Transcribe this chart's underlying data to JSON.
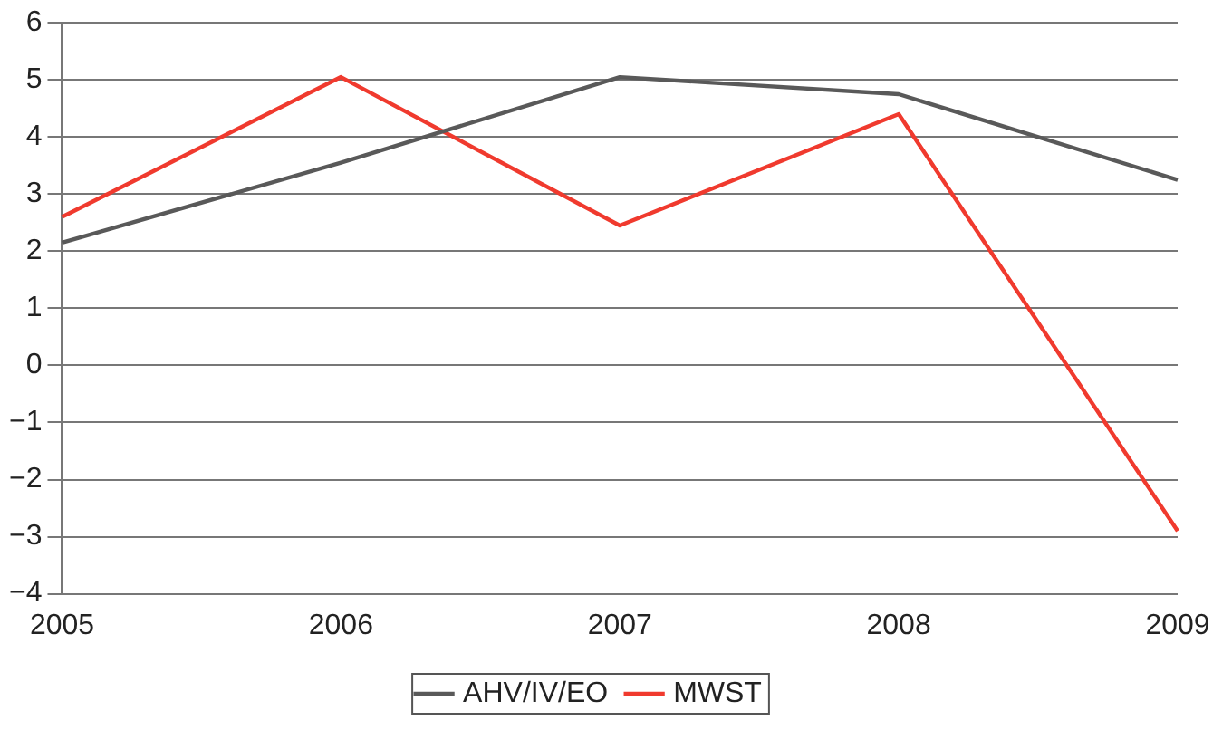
{
  "chart_data": {
    "type": "line",
    "categories": [
      "2005",
      "2006",
      "2007",
      "2008",
      "2009"
    ],
    "series": [
      {
        "name": "AHV/IV/EO",
        "color": "#595959",
        "values": [
          2.15,
          3.55,
          5.05,
          4.75,
          3.25
        ]
      },
      {
        "name": "MWST",
        "color": "#f03a2e",
        "values": [
          2.6,
          5.05,
          2.45,
          4.4,
          -2.9
        ]
      }
    ],
    "ylim": [
      -4,
      6
    ],
    "yticks": [
      {
        "value": -4,
        "label": "−4"
      },
      {
        "value": -3,
        "label": "−3"
      },
      {
        "value": -2,
        "label": "−2"
      },
      {
        "value": -1,
        "label": "−1"
      },
      0,
      1,
      2,
      3,
      4,
      5,
      6
    ],
    "grid": "y",
    "legend": "bottom",
    "marker": "none",
    "line_style": "solid"
  }
}
